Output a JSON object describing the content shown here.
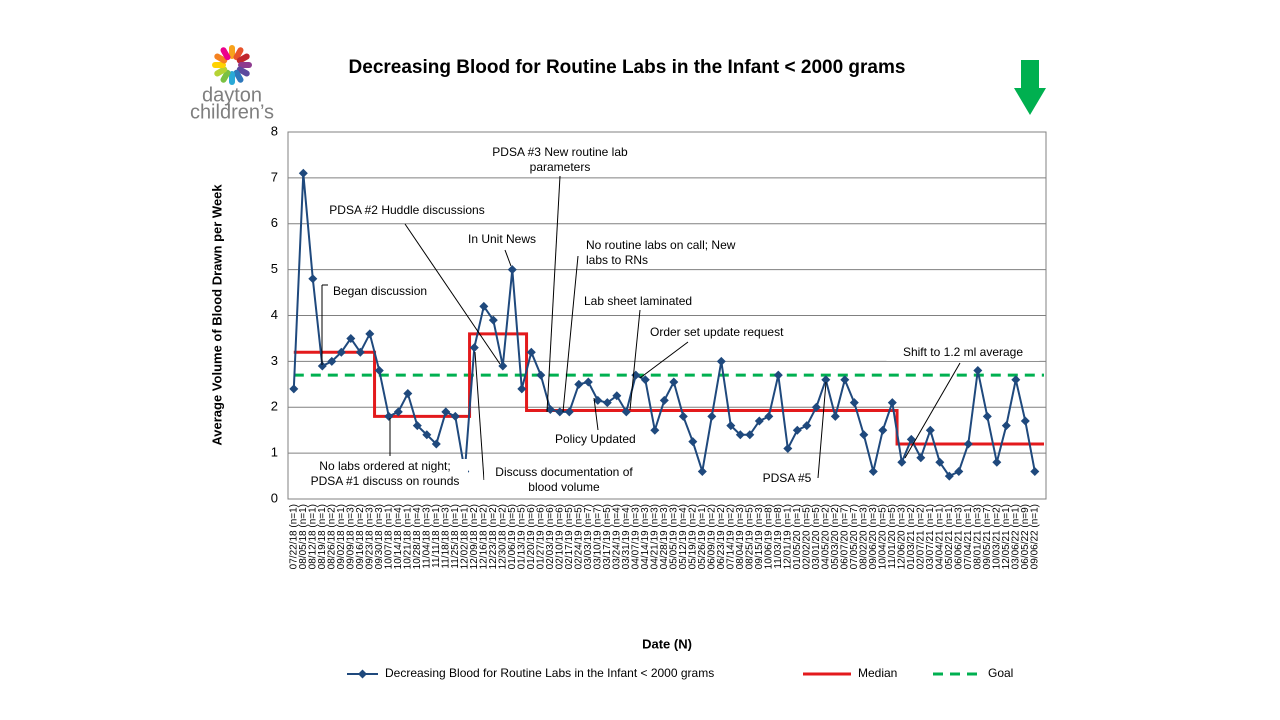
{
  "logo": [
    "dayton",
    "children’s"
  ],
  "chart_data": {
    "type": "line",
    "title": "Decreasing Blood for Routine Labs in the Infant < 2000 grams",
    "y_label": "Average Volume of Blood Drawn per Week",
    "x_label": "Date (N)",
    "categories": [
      "07/22/18 (n=1)",
      "08/05/18 (n=1)",
      "08/12/18 (n=1)",
      "08/19/18 (n=1)",
      "08/26/18 (n=2)",
      "09/02/18 (n=1)",
      "09/09/18 (n=3)",
      "09/16/18 (n=2)",
      "09/23/18 (n=3)",
      "09/30/18 (n=3)",
      "10/07/18 (n=1)",
      "10/14/18 (n=4)",
      "10/21/18 (n=1)",
      "10/28/18 (n=4)",
      "11/04/18 (n=3)",
      "11/11/18 (n=1)",
      "11/18/18 (n=3)",
      "11/25/18 (n=1)",
      "12/02/18 (n=1)",
      "12/09/18 (n=2)",
      "12/16/18 (n=2)",
      "12/23/18 (n=2)",
      "12/30/18 (n=2)",
      "01/06/19 (n=5)",
      "01/13/19 (n=5)",
      "01/20/19 (n=6)",
      "01/27/19 (n=6)",
      "02/03/19 (n=6)",
      "02/10/19 (n=6)",
      "02/17/19 (n=5)",
      "02/24/19 (n=5)",
      "03/03/19 (n=7)",
      "03/10/19 (n=7)",
      "03/17/19 (n=5)",
      "03/24/19 (n=4)",
      "03/31/19 (n=4)",
      "04/07/19 (n=3)",
      "04/14/19 (n=3)",
      "04/21/19 (n=3)",
      "04/28/19 (n=3)",
      "05/05/19 (n=3)",
      "05/12/19 (n=4)",
      "05/19/19 (n=2)",
      "05/26/19 (n=1)",
      "06/09/19 (n=2)",
      "06/23/19 (n=2)",
      "07/14/19 (n=2)",
      "08/04/19 (n=3)",
      "08/25/19 (n=5)",
      "09/15/19 (n=3)",
      "10/06/19 (n=8)",
      "11/03/19 (n=8)",
      "12/01/19 (n=1)",
      "01/05/20 (n=1)",
      "02/02/20 (n=5)",
      "03/01/20 (n=5)",
      "04/05/20 (n=2)",
      "05/03/20 (n=2)",
      "06/07/20 (n=7)",
      "07/05/20 (n=7)",
      "08/02/20 (n=3)",
      "09/06/20 (n=3)",
      "10/04/20 (n=5)",
      "11/01/20 (n=5)",
      "12/06/20 (n=3)",
      "01/03/21 (n=2)",
      "02/07/21 (n=2)",
      "03/07/21 (n=1)",
      "04/04/21 (n=1)",
      "05/02/21 (n=1)",
      "06/06/21 (n=3)",
      "07/04/21 (n=1)",
      "08/01/21 (n=3)",
      "09/05/21 (n=7)",
      "10/03/21 (n=2)",
      "12/05/21 (n=1)",
      "03/06/22 (n=1)",
      "06/05/22 (n=9)",
      "09/06/22 (n=1)"
    ],
    "series": [
      {
        "name": "Decreasing Blood for Routine Labs in the Infant < 2000 grams",
        "color": "#1f497d",
        "style": "markers",
        "values": [
          2.4,
          7.1,
          4.8,
          2.9,
          3.0,
          3.2,
          3.5,
          3.2,
          3.6,
          2.8,
          1.8,
          1.9,
          2.3,
          1.6,
          1.4,
          1.2,
          1.9,
          1.8,
          0.6,
          3.3,
          4.2,
          3.9,
          2.9,
          5.0,
          2.4,
          3.2,
          2.7,
          1.95,
          1.9,
          1.9,
          2.5,
          2.55,
          2.15,
          2.1,
          2.25,
          1.9,
          2.7,
          2.6,
          1.5,
          2.15,
          2.55,
          1.8,
          1.25,
          0.6,
          1.8,
          3.0,
          1.6,
          1.4,
          1.4,
          1.7,
          1.8,
          2.7,
          1.1,
          1.5,
          1.6,
          2.0,
          2.6,
          1.8,
          2.6,
          2.1,
          1.4,
          0.6,
          1.5,
          2.1,
          0.8,
          1.3,
          0.9,
          1.5,
          0.8,
          0.5,
          0.6,
          1.2,
          2.8,
          1.8,
          0.8,
          1.6,
          2.6,
          1.7,
          0.6
        ]
      },
      {
        "name": "Median",
        "color": "#e31a1c",
        "style": "step",
        "values": [
          3.2,
          3.2,
          3.2,
          3.2,
          3.2,
          3.2,
          3.2,
          3.2,
          3.2,
          1.8,
          1.8,
          1.8,
          1.8,
          1.8,
          1.8,
          1.8,
          1.8,
          1.8,
          1.8,
          3.6,
          3.6,
          3.6,
          3.6,
          3.6,
          3.6,
          1.93,
          1.93,
          1.93,
          1.93,
          1.93,
          1.93,
          1.93,
          1.93,
          1.93,
          1.93,
          1.93,
          1.93,
          1.93,
          1.93,
          1.93,
          1.93,
          1.93,
          1.93,
          1.93,
          1.93,
          1.93,
          1.93,
          1.93,
          1.93,
          1.93,
          1.93,
          1.93,
          1.93,
          1.93,
          1.93,
          1.93,
          1.93,
          1.93,
          1.93,
          1.93,
          1.93,
          1.93,
          1.93,
          1.93,
          1.2,
          1.2,
          1.2,
          1.2,
          1.2,
          1.2,
          1.2,
          1.2,
          1.2,
          1.2,
          1.2,
          1.2,
          1.2,
          1.2,
          1.2
        ]
      },
      {
        "name": "Goal",
        "color": "#00b050",
        "style": "dashed",
        "value": 2.7
      }
    ],
    "ylim": [
      0,
      8
    ],
    "yticks": [
      0,
      1,
      2,
      3,
      4,
      5,
      6,
      7,
      8
    ],
    "grid": true,
    "annotations": [
      {
        "lines": [
          "Began discussion"
        ]
      },
      {
        "lines": [
          "PDSA #2 Huddle discussions"
        ]
      },
      {
        "lines": [
          "In Unit News"
        ]
      },
      {
        "lines": [
          "PDSA #3 New routine lab",
          "parameters"
        ]
      },
      {
        "lines": [
          "No routine labs on call; New",
          "labs to RNs"
        ]
      },
      {
        "lines": [
          "Lab sheet laminated"
        ]
      },
      {
        "lines": [
          "Order set update request"
        ]
      },
      {
        "lines": [
          "Policy Updated"
        ]
      },
      {
        "lines": [
          "No labs ordered at night;",
          "PDSA #1 discuss on rounds"
        ]
      },
      {
        "lines": [
          "Discuss documentation of",
          "blood volume"
        ]
      },
      {
        "lines": [
          "PDSA #5"
        ]
      },
      {
        "lines": [
          "Shift to 1.2 ml average"
        ]
      }
    ]
  }
}
